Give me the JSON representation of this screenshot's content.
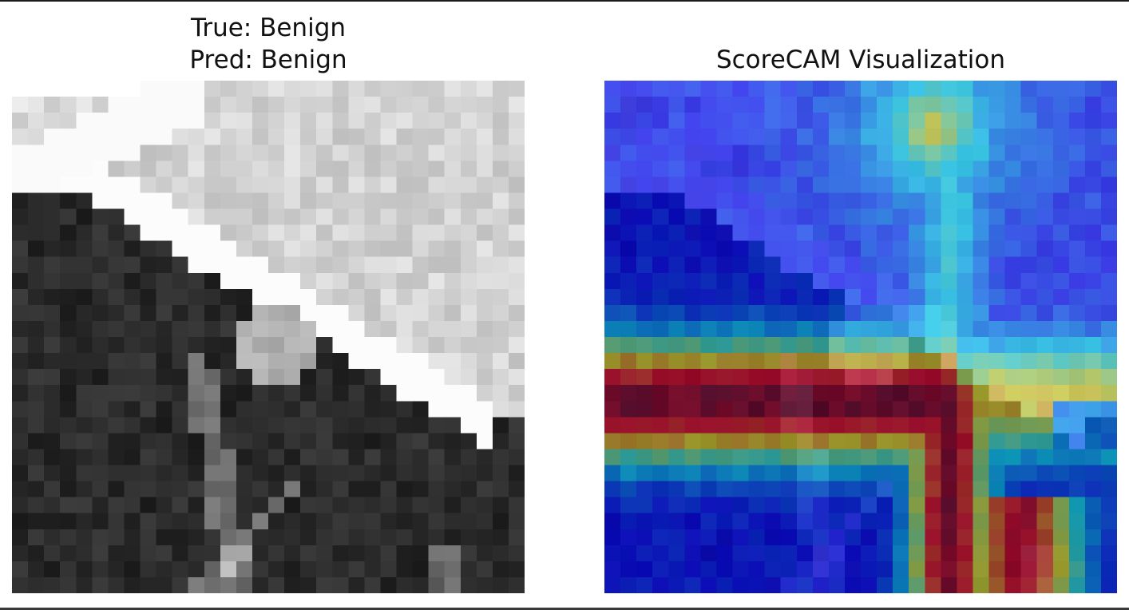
{
  "figure": {
    "left_panel": {
      "title_line1": "True: Benign",
      "title_line2": "Pred: Benign",
      "image_kind": "grayscale mammogram patch"
    },
    "right_panel": {
      "title": "ScoreCAM Visualization",
      "image_kind": "heatmap overlay",
      "colormap": "jet"
    }
  },
  "colors": {
    "background": "#ffffff",
    "frame": "#1a1a1a"
  }
}
